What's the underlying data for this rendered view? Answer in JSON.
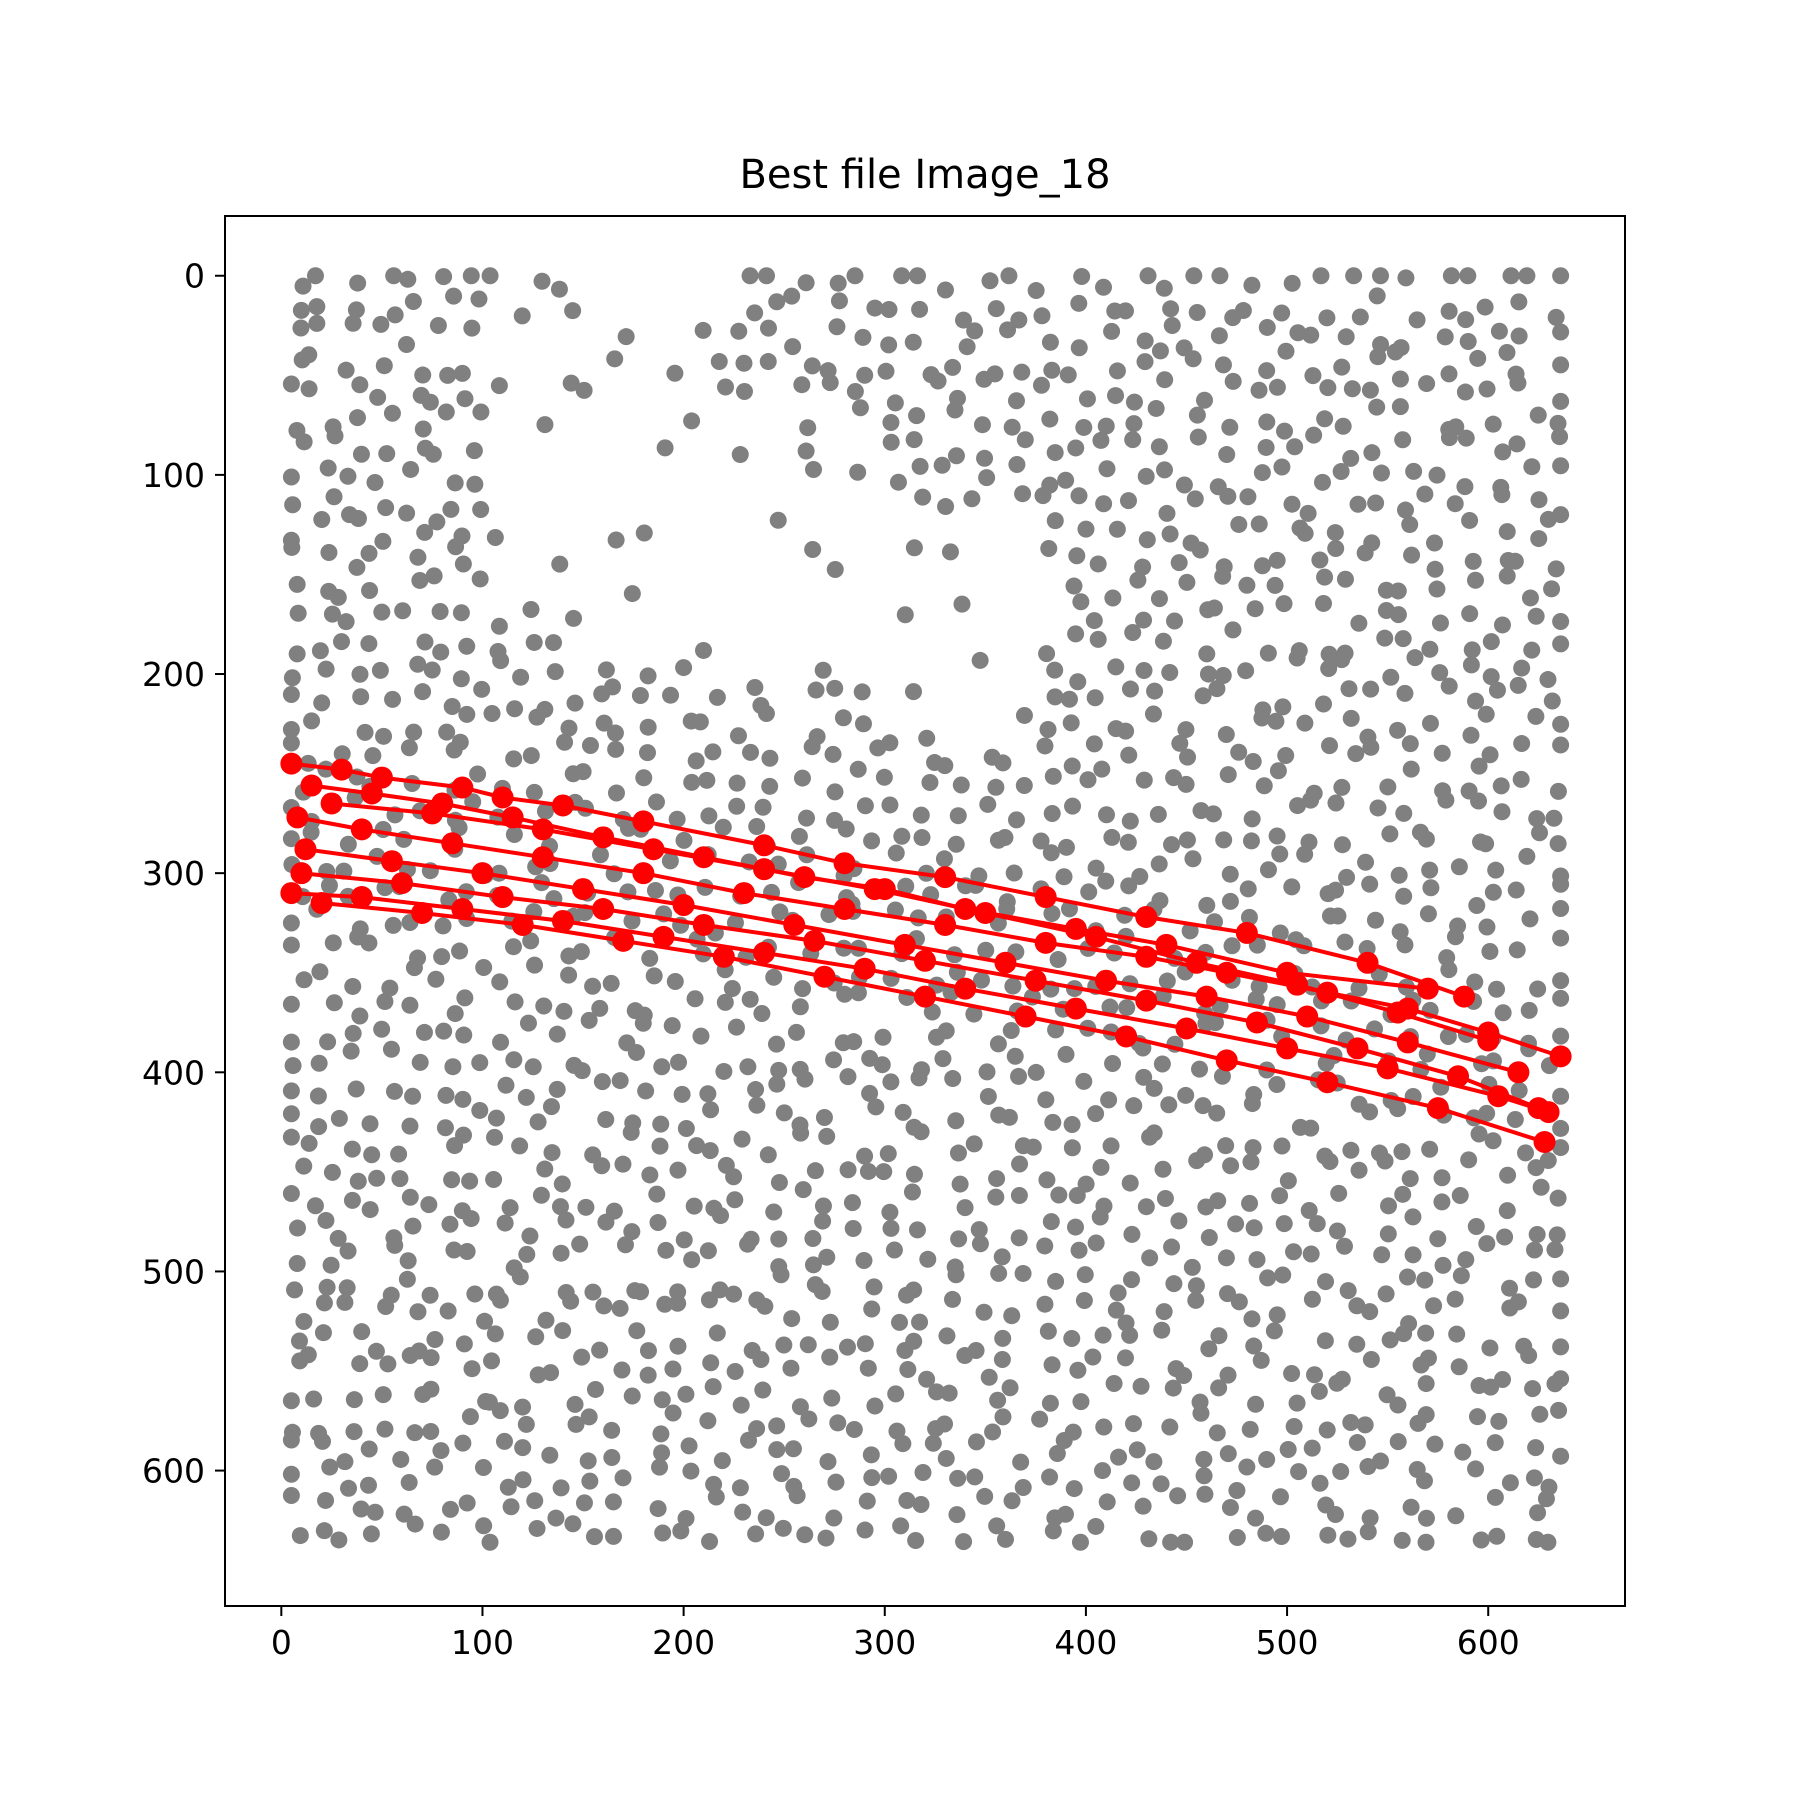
{
  "chart_data": {
    "type": "scatter",
    "title": "Best file Image_18",
    "xlabel": "",
    "ylabel": "",
    "xlim": [
      -28,
      668
    ],
    "ylim": [
      668,
      -30
    ],
    "y_inverted": true,
    "grid": false,
    "xticks": [
      0,
      100,
      200,
      300,
      400,
      500,
      600
    ],
    "yticks": [
      0,
      100,
      200,
      300,
      400,
      500,
      600
    ],
    "colors": {
      "points": "#808080",
      "lines": "#ff0000"
    },
    "point_grid": {
      "x_start": 5,
      "x_end": 636,
      "x_step": 15,
      "y_start": 2,
      "y_end": 636,
      "y_step": 14,
      "gaps": [
        {
          "x": [
            100,
            220
          ],
          "y": [
            0,
            160
          ]
        },
        {
          "x": [
            150,
            300
          ],
          "y": [
            60,
            200
          ]
        },
        {
          "x": [
            300,
            380
          ],
          "y": [
            120,
            230
          ]
        }
      ]
    },
    "series": [
      {
        "x": [
          5,
          30,
          50,
          90,
          110,
          140,
          180,
          240,
          280,
          330,
          380,
          430,
          480,
          540,
          588
        ],
        "y": [
          245,
          248,
          252,
          257,
          262,
          266,
          274,
          286,
          295,
          302,
          312,
          322,
          330,
          345,
          362
        ]
      },
      {
        "x": [
          15,
          45,
          80,
          115,
          160,
          210,
          260,
          300,
          340,
          395,
          440,
          500,
          570
        ],
        "y": [
          256,
          260,
          265,
          272,
          282,
          292,
          302,
          308,
          318,
          328,
          336,
          350,
          358
        ]
      },
      {
        "x": [
          8,
          40,
          85,
          130,
          180,
          230,
          280,
          330,
          380,
          430,
          470,
          520,
          560,
          600,
          636
        ],
        "y": [
          272,
          278,
          285,
          292,
          300,
          310,
          318,
          326,
          335,
          342,
          350,
          360,
          368,
          380,
          392
        ]
      },
      {
        "x": [
          12,
          55,
          100,
          150,
          200,
          255,
          310,
          360,
          410,
          460,
          510,
          560,
          615
        ],
        "y": [
          288,
          294,
          300,
          308,
          316,
          326,
          336,
          345,
          354,
          362,
          372,
          385,
          400
        ]
      },
      {
        "x": [
          5,
          40,
          90,
          140,
          190,
          240,
          290,
          340,
          395,
          450,
          500,
          550,
          605,
          630
        ],
        "y": [
          310,
          312,
          318,
          324,
          332,
          340,
          348,
          358,
          368,
          378,
          388,
          398,
          412,
          420
        ]
      },
      {
        "x": [
          20,
          70,
          120,
          170,
          220,
          270,
          320,
          370,
          420,
          470,
          520,
          575,
          628
        ],
        "y": [
          315,
          320,
          326,
          334,
          342,
          352,
          362,
          372,
          382,
          394,
          405,
          418,
          435
        ]
      },
      {
        "x": [
          10,
          60,
          110,
          160,
          210,
          265,
          320,
          375,
          430,
          485,
          535,
          585,
          625
        ],
        "y": [
          300,
          305,
          312,
          318,
          326,
          334,
          344,
          354,
          364,
          375,
          388,
          402,
          418
        ]
      },
      {
        "x": [
          25,
          75,
          130,
          185,
          240,
          295,
          350,
          405,
          455,
          505,
          555,
          600
        ],
        "y": [
          265,
          270,
          278,
          288,
          298,
          308,
          320,
          332,
          345,
          356,
          370,
          384
        ]
      }
    ]
  }
}
